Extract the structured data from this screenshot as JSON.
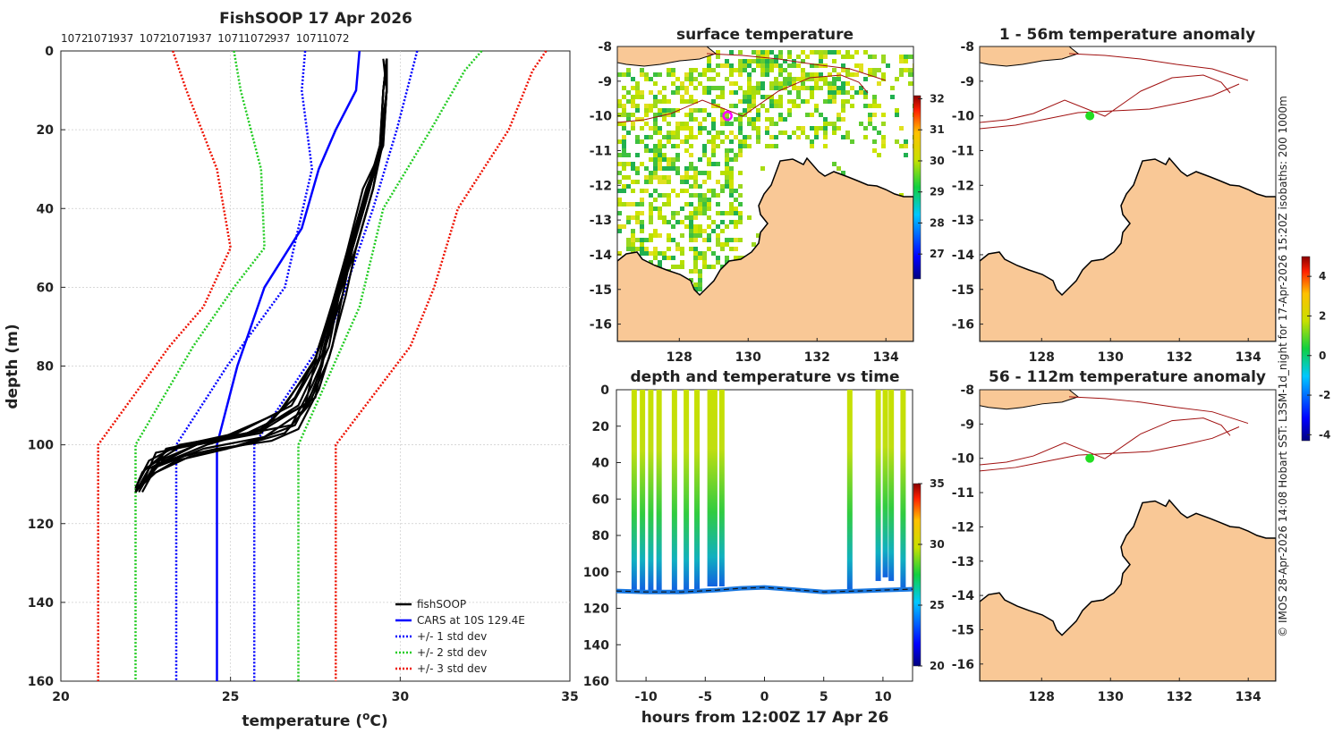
{
  "colors": {
    "fishsoop": "#000000",
    "cars": "#0000ff",
    "std1": "#0000ff",
    "std2": "#22cc22",
    "std3": "#ee1100",
    "land": "#f9c896",
    "isobath": "#a01010",
    "marker_sst": "#ff00ff",
    "marker_anom": "#22dd22"
  },
  "chart_data": [
    {
      "id": "profile",
      "type": "line",
      "title": "FishSOOP 17 Apr 2026",
      "top_labels": [
        "1072",
        "1071",
        "937",
        "1072",
        "1071",
        "937",
        "1071",
        "1072",
        "937",
        "1071",
        "1072"
      ],
      "xlabel": "temperature (",
      "xlabel_sup": "o",
      "xlabel_end": "C)",
      "ylabel": "depth (m)",
      "xlim": [
        20,
        35
      ],
      "ylim": [
        0,
        160
      ],
      "xticks": [
        "20",
        "25",
        "30",
        "35"
      ],
      "yticks": [
        "0",
        "20",
        "40",
        "60",
        "80",
        "100",
        "120",
        "140",
        "160"
      ],
      "legend": [
        {
          "label": "fishSOOP",
          "style": "solid",
          "color": "#000000"
        },
        {
          "label": "CARS at 10S 129.4E",
          "style": "solid",
          "color": "#0000ff"
        },
        {
          "label": "+/- 1 std dev",
          "style": "dotted",
          "color": "#0000ff"
        },
        {
          "label": "+/- 2 std dev",
          "style": "dotted",
          "color": "#22cc22"
        },
        {
          "label": "+/- 3 std dev",
          "style": "dotted",
          "color": "#ee1100"
        }
      ],
      "cars": {
        "temp": [
          28.8,
          28.7,
          28.1,
          27.6,
          27.1,
          26.0,
          25.2,
          24.6,
          24.6,
          24.6
        ],
        "depth": [
          0,
          10,
          20,
          30,
          45,
          60,
          80,
          100,
          130,
          160
        ]
      },
      "std_lines": [
        {
          "name": "minus3",
          "color": "#ee1100",
          "temp": [
            23.3,
            23.7,
            24.6,
            25.0,
            24.2,
            23.2,
            21.1,
            21.1
          ],
          "depth": [
            0,
            10,
            30,
            50,
            65,
            75,
            100,
            160
          ]
        },
        {
          "name": "plus3",
          "color": "#ee1100",
          "temp": [
            34.3,
            33.9,
            33.2,
            31.7,
            31.0,
            30.3,
            28.1,
            28.1
          ],
          "depth": [
            0,
            5,
            20,
            40,
            60,
            75,
            100,
            160
          ]
        },
        {
          "name": "minus2",
          "color": "#22cc22",
          "temp": [
            25.1,
            25.3,
            25.9,
            26.0,
            25.1,
            23.9,
            22.2,
            22.2
          ],
          "depth": [
            0,
            10,
            30,
            50,
            60,
            75,
            100,
            160
          ]
        },
        {
          "name": "plus2",
          "color": "#22cc22",
          "temp": [
            32.4,
            31.9,
            30.9,
            29.5,
            28.8,
            27.0,
            27.0
          ],
          "depth": [
            0,
            5,
            20,
            40,
            65,
            100,
            160
          ]
        },
        {
          "name": "minus1",
          "color": "#0000ff",
          "temp": [
            27.2,
            27.1,
            27.4,
            26.6,
            24.9,
            23.4,
            23.4
          ],
          "depth": [
            0,
            10,
            30,
            60,
            80,
            100,
            160
          ]
        },
        {
          "name": "plus1",
          "color": "#0000ff",
          "temp": [
            30.5,
            30.2,
            29.9,
            29.2,
            28.0,
            25.7,
            25.7
          ],
          "depth": [
            0,
            10,
            20,
            40,
            70,
            100,
            160
          ]
        }
      ],
      "fish_casts": [
        {
          "temp": [
            29.6,
            29.6,
            29.5,
            29.1,
            28.6,
            28.3,
            27.8,
            27.5,
            26.0,
            24.5,
            22.8,
            22.5,
            22.2
          ],
          "depth": [
            2,
            10,
            22,
            35,
            50,
            62,
            75,
            88,
            96,
            99,
            102,
            108,
            112
          ]
        },
        {
          "temp": [
            29.6,
            29.6,
            29.5,
            29.0,
            28.5,
            28.1,
            27.6,
            27.2,
            25.5,
            23.5,
            22.6,
            22.3,
            22.2
          ],
          "depth": [
            2,
            10,
            24,
            35,
            50,
            62,
            75,
            90,
            97,
            100,
            104,
            109,
            112
          ]
        },
        {
          "temp": [
            29.6,
            29.6,
            29.4,
            29.2,
            28.7,
            28.2,
            27.9,
            27.4,
            26.8,
            25.0,
            23.2,
            22.4,
            22.2
          ],
          "depth": [
            2,
            10,
            25,
            35,
            50,
            62,
            75,
            85,
            95,
            98,
            101,
            107,
            111
          ]
        },
        {
          "temp": [
            29.6,
            29.5,
            29.4,
            28.9,
            28.4,
            28.0,
            27.5,
            26.6,
            25.9,
            24.0,
            22.9,
            22.3
          ],
          "depth": [
            2,
            10,
            26,
            35,
            52,
            64,
            78,
            90,
            97,
            100,
            104,
            111
          ]
        },
        {
          "temp": [
            29.6,
            29.6,
            29.5,
            29.1,
            28.6,
            28.3,
            28.0,
            27.6,
            27.0,
            26.2,
            24.6,
            23.0,
            22.3
          ],
          "depth": [
            2,
            10,
            22,
            35,
            50,
            62,
            75,
            86,
            96,
            99,
            101,
            104,
            111
          ]
        },
        {
          "temp": [
            29.6,
            29.5,
            29.4,
            29.0,
            28.5,
            28.1,
            27.4,
            26.4,
            24.8,
            23.1,
            22.4
          ],
          "depth": [
            2,
            10,
            25,
            38,
            52,
            65,
            80,
            92,
            98,
            101,
            112
          ]
        },
        {
          "temp": [
            29.6,
            29.6,
            29.5,
            29.2,
            28.7,
            28.4,
            27.9,
            27.3,
            26.6,
            25.4,
            23.8,
            22.8,
            22.3
          ],
          "depth": [
            2,
            10,
            22,
            35,
            50,
            62,
            78,
            90,
            97,
            100,
            103,
            107,
            111
          ]
        },
        {
          "temp": [
            29.6,
            29.5,
            29.4,
            29.0,
            28.5,
            28.0,
            27.7,
            27.2,
            26.0,
            24.2,
            22.7,
            22.3
          ],
          "depth": [
            2,
            10,
            26,
            38,
            52,
            66,
            80,
            91,
            98,
            101,
            106,
            112
          ]
        },
        {
          "temp": [
            29.6,
            29.6,
            29.5,
            29.1,
            28.6,
            28.2,
            27.8,
            27.5,
            26.9,
            26.0,
            24.9,
            23.4,
            22.6,
            22.2
          ],
          "depth": [
            2,
            10,
            22,
            35,
            50,
            62,
            75,
            85,
            95,
            98,
            101,
            104,
            108,
            112
          ]
        },
        {
          "temp": [
            29.6,
            29.6,
            29.4,
            29.0,
            28.4,
            28.0,
            27.6,
            26.8,
            25.2,
            23.6,
            22.5,
            22.2
          ],
          "depth": [
            2,
            10,
            24,
            36,
            52,
            65,
            78,
            90,
            97,
            100,
            106,
            111
          ]
        },
        {
          "temp": [
            29.5,
            29.6,
            29.5,
            29.2,
            28.7,
            28.2,
            27.5,
            26.9,
            25.9,
            24.3,
            22.9,
            22.3
          ],
          "depth": [
            2,
            10,
            23,
            35,
            50,
            62,
            78,
            88,
            96,
            100,
            105,
            111
          ]
        },
        {
          "temp": [
            29.6,
            29.5,
            29.4,
            29.0,
            28.5,
            28.1,
            27.7,
            27.0,
            25.7,
            24.0,
            22.6,
            22.2
          ],
          "depth": [
            2,
            10,
            24,
            37,
            51,
            63,
            77,
            90,
            97,
            100,
            106,
            112
          ]
        }
      ]
    },
    {
      "id": "sst_map",
      "type": "heatmap",
      "title": "surface temperature",
      "xlim": [
        126.2,
        134.8
      ],
      "ylim": [
        -16.5,
        -8
      ],
      "xticks": [
        "128",
        "130",
        "132",
        "134"
      ],
      "yticks": [
        "-8",
        "-9",
        "-10",
        "-11",
        "-12",
        "-13",
        "-14",
        "-15",
        "-16"
      ],
      "colorbar": {
        "min": 26.2,
        "max": 32.1,
        "ticks": [
          "27",
          "28",
          "29",
          "30",
          "31",
          "32"
        ]
      },
      "marker": {
        "lon": 129.4,
        "lat": -10
      }
    },
    {
      "id": "anom_map_1",
      "type": "heatmap",
      "title": "1 - 56m temperature anomaly",
      "xlim": [
        126.2,
        134.8
      ],
      "ylim": [
        -16.5,
        -8
      ],
      "xticks": [
        "128",
        "130",
        "132",
        "134"
      ],
      "yticks": [
        "-8",
        "-9",
        "-10",
        "-11",
        "-12",
        "-13",
        "-14",
        "-15",
        "-16"
      ],
      "marker": {
        "lon": 129.4,
        "lat": -10
      }
    },
    {
      "id": "anom_map_2",
      "type": "heatmap",
      "title": "56 - 112m temperature anomaly",
      "xlim": [
        126.2,
        134.8
      ],
      "ylim": [
        -16.5,
        -8
      ],
      "xticks": [
        "128",
        "130",
        "132",
        "134"
      ],
      "yticks": [
        "-8",
        "-9",
        "-10",
        "-11",
        "-12",
        "-13",
        "-14",
        "-15",
        "-16"
      ],
      "marker": {
        "lon": 129.4,
        "lat": -10
      }
    },
    {
      "id": "anom_colorbar",
      "type": "heatmap",
      "colorbar": {
        "min": -4.3,
        "max": 5.0,
        "ticks": [
          "4",
          "2",
          "0",
          "-2",
          "-4"
        ]
      }
    },
    {
      "id": "time_depth",
      "type": "scatter",
      "title": "depth and temperature vs time",
      "xlabel": "hours from 12:00Z 17 Apr 26",
      "xlim": [
        -12.5,
        12.5
      ],
      "ylim": [
        0,
        160
      ],
      "xticks": [
        "-10",
        "-5",
        "0",
        "5",
        "10"
      ],
      "yticks": [
        "0",
        "20",
        "40",
        "60",
        "80",
        "100",
        "120",
        "140",
        "160"
      ],
      "colorbar": {
        "min": 20,
        "max": 35,
        "ticks": [
          "35",
          "30",
          "25",
          "20"
        ]
      },
      "cast_times": [
        -11.0,
        -10.3,
        -9.6,
        -8.9,
        -7.6,
        -6.6,
        -5.7,
        -4.6,
        -4.2,
        -3.6,
        7.2,
        9.6,
        10.2,
        10.7,
        11.7
      ],
      "cast_bottoms": [
        110,
        110,
        110,
        110,
        110,
        110,
        110,
        108,
        108,
        108,
        110,
        105,
        103,
        105,
        110
      ],
      "bottom_track": {
        "time": [
          -12.5,
          -10,
          -7,
          -4,
          -2,
          0,
          2,
          5,
          8,
          10,
          12.5
        ],
        "depth": [
          110.5,
          111,
          111,
          110,
          109,
          108.5,
          109.5,
          111,
          110.5,
          110,
          109.5
        ]
      }
    }
  ],
  "side_text": "© IMOS 28-Apr-2026 14:08 Hobart SST: L3SM-1d_night for 17-Apr-2026 15:20Z isobaths: 200  1000m"
}
